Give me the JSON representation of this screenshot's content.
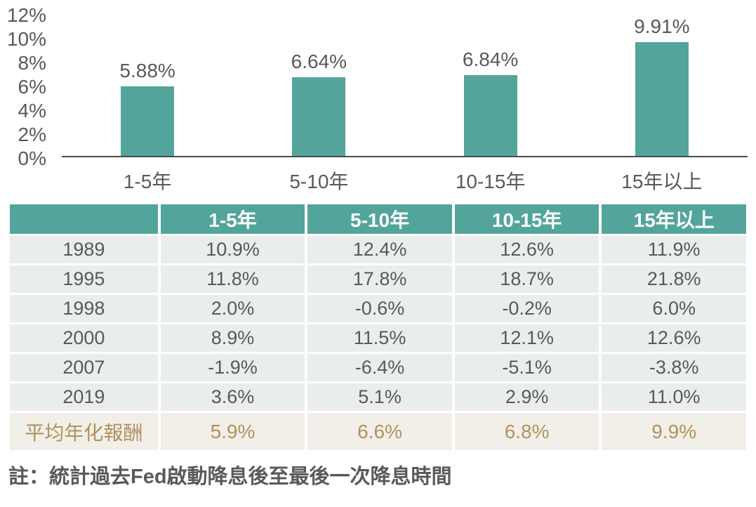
{
  "chart_data": {
    "type": "bar",
    "categories": [
      "1-5年",
      "5-10年",
      "10-15年",
      "15年以上"
    ],
    "values": [
      5.88,
      6.64,
      6.84,
      9.91
    ],
    "data_labels": [
      "5.88%",
      "6.64%",
      "6.84%",
      "9.91%"
    ],
    "title": "",
    "xlabel": "",
    "ylabel": "",
    "ylim": [
      0,
      12
    ],
    "yticks": [
      "12%",
      "10%",
      "8%",
      "6%",
      "4%",
      "2%",
      "0%"
    ],
    "grid": false,
    "legend": "none",
    "bar_color": "#53a59c"
  },
  "table": {
    "columns": [
      "",
      "1-5年",
      "5-10年",
      "10-15年",
      "15年以上"
    ],
    "rows": [
      {
        "label": "1989",
        "values": [
          "10.9%",
          "12.4%",
          "12.6%",
          "11.9%"
        ]
      },
      {
        "label": "1995",
        "values": [
          "11.8%",
          "17.8%",
          "18.7%",
          "21.8%"
        ]
      },
      {
        "label": "1998",
        "values": [
          "2.0%",
          "-0.6%",
          "-0.2%",
          "6.0%"
        ]
      },
      {
        "label": "2000",
        "values": [
          "8.9%",
          "11.5%",
          "12.1%",
          "12.6%"
        ]
      },
      {
        "label": "2007",
        "values": [
          "-1.9%",
          "-6.4%",
          "-5.1%",
          "-3.8%"
        ]
      },
      {
        "label": "2019",
        "values": [
          "3.6%",
          "5.1%",
          "2.9%",
          "11.0%"
        ]
      }
    ],
    "summary_row": {
      "label": "平均年化報酬",
      "values": [
        "5.9%",
        "6.6%",
        "6.8%",
        "9.9%"
      ]
    }
  },
  "note": "註：統計過去Fed啟動降息後至最後一次降息時間",
  "colors": {
    "bar": "#53a59c",
    "header_bg": "#53a59c",
    "row_bg": "#e9eeec",
    "summary_bg": "#f2efe9",
    "summary_text": "#b1925e",
    "text": "#595959"
  }
}
